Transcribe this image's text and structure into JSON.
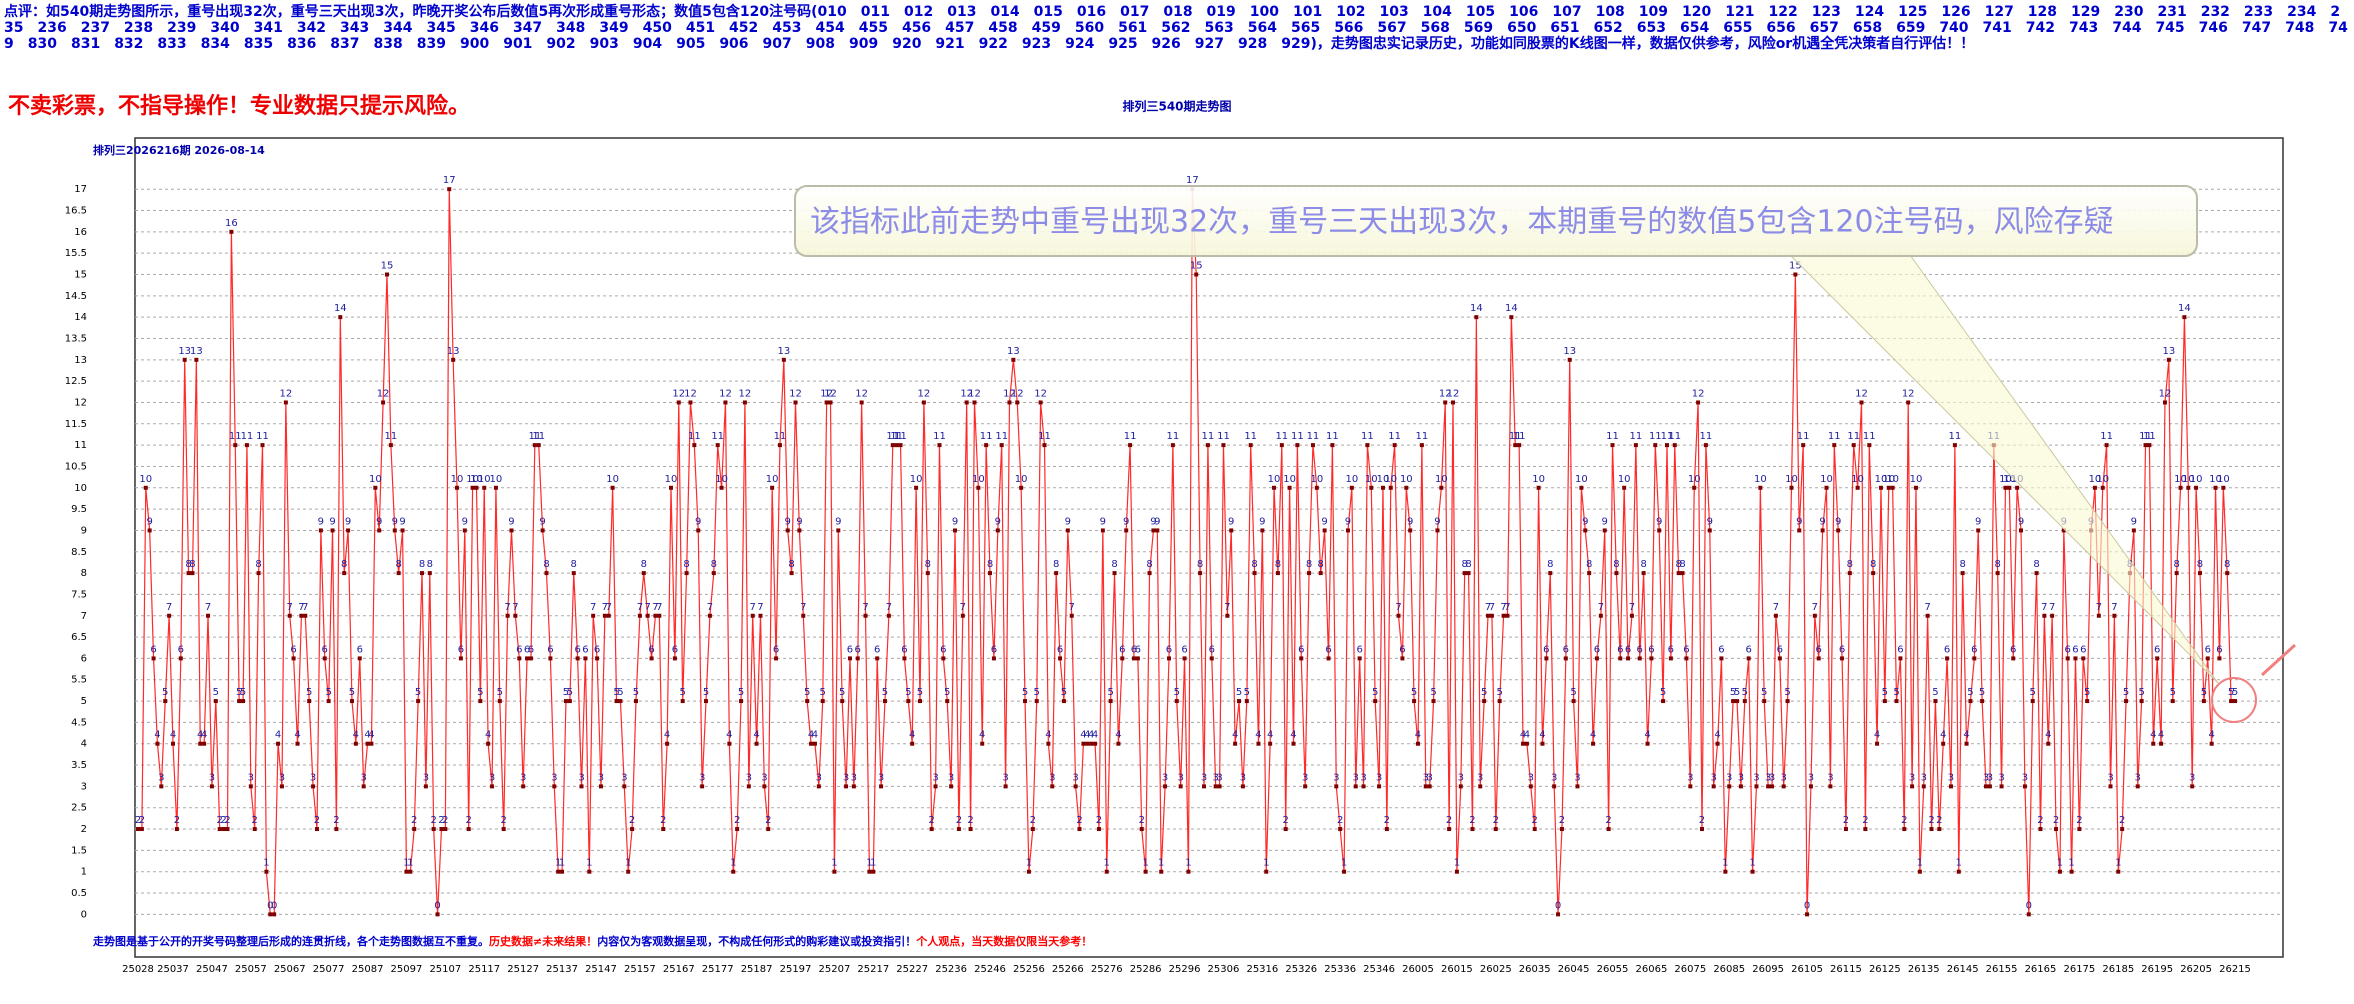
{
  "header": {
    "note": "点评：如540期走势图所示，重号出现32次，重号三天出现3次，昨晚开奖公布后数值5再次形成重号形态；数值5包含120注号码(010　011　012　013　014　015　016　017　018　019　100　101　102　103　104　105　106　107　108　109　120　121　122　123　124　125　126　127　128　129　230　231　232　233　234　235　236　237　238　239　340　341　342　343　344　345　346　347　348　349　450　451　452　453　454　455　456　457　458　459　560　561　562　563　564　565　566　567　568　569　650　651　652　653　654　655　656　657　658　659　740　741　742　743　744　745　746　747　748　749　830　831　832　833　834　835　836　837　838　839　900　901　902　903　904　905　906　907　908　909　920　921　922　923　924　925　926　927　928　929)，走势图忠实记录历史，功能如同股票的K线图一样，数据仅供参考，风险or机遇全凭决策者自行评估！！",
    "warning": "不卖彩票，不指导操作！专业数据只提示风险。"
  },
  "chart_data": {
    "type": "line",
    "title": "排列三540期走势图",
    "subtitle": "排列三2026216期 2026-08-14",
    "annotation": "该指标此前走势中重号出现32次，重号三天出现3次，本期重号的数值5包含120注号码，风险存疑",
    "footer": [
      "走势图是基于公开的开奖号码整理后形成的连贯折线，各个走势图数据互不重复。",
      "历史数据≠未来结果！",
      "内容仅为客观数据呈现，不构成任何形式的购彩建议或投资指引！",
      "个人观点，当天数据仅限当天参考！"
    ],
    "footer_colors": [
      "#0000cc",
      "#ff0000",
      "#0000cc",
      "#ff0000"
    ],
    "line_color": "#ff2a2a",
    "point_color": "#800000",
    "label_color": "#2020a0",
    "grid": true,
    "ylim": [
      -1,
      18.2
    ],
    "yticks": [
      0,
      0.5,
      1,
      1.5,
      2,
      2.5,
      3,
      3.5,
      4,
      4.5,
      5,
      5.5,
      6,
      6.5,
      7,
      7.5,
      8,
      8.5,
      9,
      9.5,
      10,
      10.5,
      11,
      11.5,
      12,
      12.5,
      13,
      13.5,
      14,
      14.5,
      15,
      15.5,
      16,
      16.5,
      17
    ],
    "categories": [
      "25028",
      null,
      null,
      null,
      null,
      null,
      null,
      null,
      null,
      "25037",
      null,
      null,
      null,
      null,
      null,
      null,
      null,
      null,
      null,
      "25047",
      null,
      null,
      null,
      null,
      null,
      null,
      null,
      null,
      null,
      "25057",
      null,
      null,
      null,
      null,
      null,
      null,
      null,
      null,
      null,
      "25067",
      null,
      null,
      null,
      null,
      null,
      null,
      null,
      null,
      null,
      "25077",
      null,
      null,
      null,
      null,
      null,
      null,
      null,
      null,
      null,
      "25087",
      null,
      null,
      null,
      null,
      null,
      null,
      null,
      null,
      null,
      "25097",
      null,
      null,
      null,
      null,
      null,
      null,
      null,
      null,
      null,
      "25107",
      null,
      null,
      null,
      null,
      null,
      null,
      null,
      null,
      null,
      "25117",
      null,
      null,
      null,
      null,
      null,
      null,
      null,
      null,
      null,
      "25127",
      null,
      null,
      null,
      null,
      null,
      null,
      null,
      null,
      null,
      "25137",
      null,
      null,
      null,
      null,
      null,
      null,
      null,
      null,
      null,
      "25147",
      null,
      null,
      null,
      null,
      null,
      null,
      null,
      null,
      null,
      "25157",
      null,
      null,
      null,
      null,
      null,
      null,
      null,
      null,
      null,
      "25167",
      null,
      null,
      null,
      null,
      null,
      null,
      null,
      null,
      null,
      "25177",
      null,
      null,
      null,
      null,
      null,
      null,
      null,
      null,
      null,
      "25187",
      null,
      null,
      null,
      null,
      null,
      null,
      null,
      null,
      null,
      "25197",
      null,
      null,
      null,
      null,
      null,
      null,
      null,
      null,
      null,
      "25207",
      null,
      null,
      null,
      null,
      null,
      null,
      null,
      null,
      null,
      "25217",
      null,
      null,
      null,
      null,
      null,
      null,
      null,
      null,
      null,
      "25227",
      null,
      null,
      null,
      null,
      null,
      null,
      null,
      null,
      null,
      "25236",
      null,
      null,
      null,
      null,
      null,
      null,
      null,
      null,
      null,
      "25246",
      null,
      null,
      null,
      null,
      null,
      null,
      null,
      null,
      null,
      "25256",
      null,
      null,
      null,
      null,
      null,
      null,
      null,
      null,
      null,
      "25266",
      null,
      null,
      null,
      null,
      null,
      null,
      null,
      null,
      null,
      "25276",
      null,
      null,
      null,
      null,
      null,
      null,
      null,
      null,
      null,
      "25286",
      null,
      null,
      null,
      null,
      null,
      null,
      null,
      null,
      null,
      "25296",
      null,
      null,
      null,
      null,
      null,
      null,
      null,
      null,
      null,
      "25306",
      null,
      null,
      null,
      null,
      null,
      null,
      null,
      null,
      null,
      "25316",
      null,
      null,
      null,
      null,
      null,
      null,
      null,
      null,
      null,
      "25326",
      null,
      null,
      null,
      null,
      null,
      null,
      null,
      null,
      null,
      "25336",
      null,
      null,
      null,
      null,
      null,
      null,
      null,
      null,
      null,
      "25346",
      null,
      null,
      null,
      null,
      null,
      null,
      null,
      null,
      null,
      "26005",
      null,
      null,
      null,
      null,
      null,
      null,
      null,
      null,
      null,
      "26015",
      null,
      null,
      null,
      null,
      null,
      null,
      null,
      null,
      null,
      "26025",
      null,
      null,
      null,
      null,
      null,
      null,
      null,
      null,
      null,
      "26035",
      null,
      null,
      null,
      null,
      null,
      null,
      null,
      null,
      null,
      "26045",
      null,
      null,
      null,
      null,
      null,
      null,
      null,
      null,
      null,
      "26055",
      null,
      null,
      null,
      null,
      null,
      null,
      null,
      null,
      null,
      "26065",
      null,
      null,
      null,
      null,
      null,
      null,
      null,
      null,
      null,
      "26075",
      null,
      null,
      null,
      null,
      null,
      null,
      null,
      null,
      null,
      "26085",
      null,
      null,
      null,
      null,
      null,
      null,
      null,
      null,
      null,
      "26095",
      null,
      null,
      null,
      null,
      null,
      null,
      null,
      null,
      null,
      "26105",
      null,
      null,
      null,
      null,
      null,
      null,
      null,
      null,
      null,
      "26115",
      null,
      null,
      null,
      null,
      null,
      null,
      null,
      null,
      null,
      "26125",
      null,
      null,
      null,
      null,
      null,
      null,
      null,
      null,
      null,
      "26135",
      null,
      null,
      null,
      null,
      null,
      null,
      null,
      null,
      null,
      "26145",
      null,
      null,
      null,
      null,
      null,
      null,
      null,
      null,
      null,
      "26155",
      null,
      null,
      null,
      null,
      null,
      null,
      null,
      null,
      null,
      "26165",
      null,
      null,
      null,
      null,
      null,
      null,
      null,
      null,
      null,
      "26175",
      null,
      null,
      null,
      null,
      null,
      null,
      null,
      null,
      null,
      "26185",
      null,
      null,
      null,
      null,
      null,
      null,
      null,
      null,
      null,
      "26195",
      null,
      null,
      null,
      null,
      null,
      null,
      null,
      null,
      null,
      "26205",
      null,
      null,
      null,
      null,
      null,
      null,
      null,
      null,
      null,
      "26215"
    ],
    "values": [
      2,
      2,
      10,
      9,
      6,
      4,
      3,
      5,
      7,
      4,
      2,
      6,
      13,
      8,
      8,
      13,
      4,
      4,
      7,
      3,
      5,
      2,
      2,
      2,
      16,
      11,
      5,
      5,
      11,
      3,
      2,
      8,
      11,
      1,
      0,
      0,
      4,
      3,
      12,
      7,
      6,
      4,
      7,
      7,
      5,
      3,
      2,
      9,
      6,
      5,
      9,
      2,
      14,
      8,
      9,
      5,
      4,
      6,
      3,
      4,
      4,
      10,
      9,
      12,
      15,
      11,
      9,
      8,
      9,
      1,
      1,
      2,
      5,
      8,
      3,
      8,
      2,
      0,
      2,
      2,
      17,
      13,
      10,
      6,
      9,
      2,
      10,
      10,
      5,
      10,
      4,
      3,
      10,
      5,
      2,
      7,
      9,
      7,
      6,
      3,
      6,
      6,
      11,
      11,
      9,
      8,
      6,
      3,
      1,
      1,
      5,
      5,
      8,
      6,
      3,
      6,
      1,
      7,
      6,
      3,
      7,
      7,
      10,
      5,
      5,
      3,
      1,
      2,
      5,
      7,
      8,
      7,
      6,
      7,
      7,
      2,
      4,
      10,
      6,
      12,
      5,
      8,
      12,
      11,
      9,
      3,
      5,
      7,
      8,
      11,
      10,
      12,
      4,
      1,
      2,
      5,
      12,
      3,
      7,
      4,
      7,
      3,
      2,
      10,
      6,
      11,
      13,
      9,
      8,
      12,
      9,
      7,
      5,
      4,
      4,
      3,
      5,
      12,
      12,
      1,
      9,
      5,
      3,
      6,
      3,
      6,
      12,
      7,
      1,
      1,
      6,
      3,
      5,
      7,
      11,
      11,
      11,
      6,
      5,
      4,
      10,
      5,
      12,
      8,
      2,
      3,
      11,
      6,
      5,
      3,
      9,
      2,
      7,
      12,
      2,
      12,
      10,
      4,
      11,
      8,
      6,
      9,
      11,
      3,
      12,
      13,
      12,
      10,
      5,
      1,
      2,
      5,
      12,
      11,
      4,
      3,
      8,
      6,
      5,
      9,
      7,
      3,
      2,
      4,
      4,
      4,
      4,
      2,
      9,
      1,
      5,
      8,
      4,
      6,
      9,
      11,
      6,
      6,
      2,
      1,
      8,
      9,
      9,
      1,
      3,
      6,
      11,
      5,
      3,
      6,
      1,
      17,
      15,
      8,
      3,
      11,
      6,
      3,
      3,
      11,
      7,
      9,
      4,
      5,
      3,
      5,
      11,
      8,
      4,
      9,
      1,
      4,
      10,
      8,
      11,
      2,
      10,
      4,
      11,
      6,
      3,
      8,
      11,
      10,
      8,
      9,
      6,
      11,
      3,
      2,
      1,
      9,
      10,
      3,
      6,
      3,
      11,
      10,
      5,
      3,
      10,
      2,
      10,
      11,
      7,
      6,
      10,
      9,
      5,
      4,
      11,
      3,
      3,
      5,
      9,
      10,
      12,
      2,
      12,
      1,
      3,
      8,
      8,
      2,
      14,
      3,
      5,
      7,
      7,
      2,
      5,
      7,
      7,
      14,
      11,
      11,
      4,
      4,
      3,
      2,
      10,
      4,
      6,
      8,
      3,
      0,
      2,
      6,
      13,
      5,
      3,
      10,
      9,
      8,
      4,
      6,
      7,
      9,
      2,
      11,
      8,
      6,
      10,
      6,
      7,
      11,
      6,
      8,
      4,
      6,
      11,
      9,
      5,
      11,
      6,
      11,
      8,
      8,
      6,
      3,
      10,
      12,
      2,
      11,
      9,
      3,
      4,
      6,
      1,
      3,
      5,
      5,
      3,
      5,
      6,
      1,
      3,
      10,
      5,
      3,
      3,
      7,
      6,
      3,
      5,
      10,
      15,
      9,
      11,
      0,
      3,
      7,
      6,
      9,
      10,
      3,
      11,
      9,
      6,
      2,
      8,
      11,
      10,
      12,
      2,
      11,
      8,
      4,
      10,
      5,
      10,
      10,
      5,
      6,
      2,
      12,
      3,
      10,
      1,
      3,
      7,
      2,
      5,
      2,
      4,
      6,
      3,
      11,
      1,
      8,
      4,
      5,
      6,
      9,
      5,
      3,
      3,
      11,
      8,
      3,
      10,
      10,
      6,
      10,
      9,
      3,
      0,
      5,
      8,
      2,
      7,
      4,
      7,
      2,
      1,
      9,
      6,
      1,
      6,
      2,
      6,
      5,
      9,
      10,
      7,
      10,
      11,
      3,
      7,
      1,
      2,
      5,
      8,
      9,
      3,
      5,
      11,
      11,
      4,
      6,
      4,
      12,
      13,
      5,
      8,
      10,
      14,
      10,
      3,
      10,
      8,
      5,
      6,
      4,
      10,
      6,
      10,
      8,
      5,
      5
    ]
  }
}
